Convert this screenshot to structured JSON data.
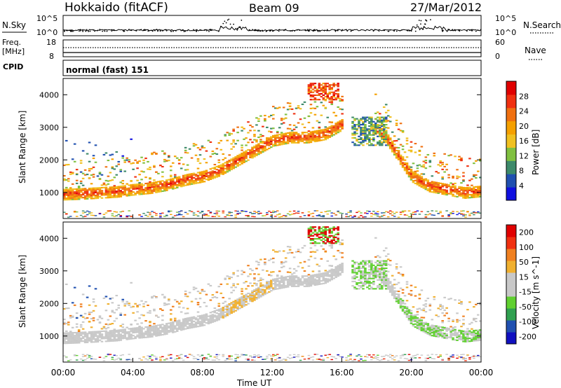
{
  "header": {
    "radar": "Hokkaido (fitACF)",
    "beam": "Beam 09",
    "date": "27/Mar/2012"
  },
  "nsky_panel": {
    "label": "N.Sky",
    "yticks_left": [
      "10^5",
      "10^0"
    ],
    "yticks_right": [
      "10^5",
      "10^0"
    ],
    "right_label": "N.Search"
  },
  "freq_panel": {
    "label_line1": "Freq.",
    "label_line2": "[MHz]",
    "yticks_left": [
      "18",
      "8"
    ],
    "yticks_right": [
      "60",
      "0"
    ],
    "right_label": "Nave"
  },
  "cpid_panel": {
    "label": "CPID",
    "value": "normal (fast) 151"
  },
  "colors": {
    "power_scale": [
      "#1010e0",
      "#2050b0",
      "#3d8a6a",
      "#80c040",
      "#f0c020",
      "#f5a000",
      "#f07010",
      "#f03010",
      "#e00000"
    ],
    "velocity_scale": [
      "#e00000",
      "#f03010",
      "#f08020",
      "#f0b030",
      "#c8c8c8",
      "#c8c8c8",
      "#60d030",
      "#30a050",
      "#2050b0",
      "#1010c0"
    ],
    "ground_scatter": "#c8c8c8"
  },
  "chart_data": [
    {
      "type": "heatmap",
      "name": "power",
      "ylabel": "Slant Range [km]",
      "yticks": [
        "1000",
        "2000",
        "3000",
        "4000"
      ],
      "ylim": [
        200,
        4500
      ],
      "xlim": [
        0,
        24
      ],
      "colorbar": {
        "label": "Power [dB]",
        "ticks": [
          "4",
          "8",
          "12",
          "16",
          "20",
          "24",
          "28"
        ],
        "range": [
          0,
          32
        ]
      },
      "features": [
        {
          "type": "band",
          "x": [
            0,
            1,
            2,
            3,
            4,
            5,
            6,
            7,
            8,
            9,
            10,
            11,
            12,
            13,
            14,
            15,
            16
          ],
          "y_center": [
            950,
            970,
            1000,
            1030,
            1100,
            1150,
            1250,
            1400,
            1500,
            1700,
            2000,
            2300,
            2600,
            2700,
            2700,
            2800,
            3100
          ],
          "thickness_km": 350,
          "power_db": 22
        },
        {
          "type": "band",
          "x": [
            17.8,
            18.5,
            19,
            19.5,
            20,
            21,
            22,
            23,
            24
          ],
          "y_center": [
            3000,
            2700,
            2300,
            1900,
            1500,
            1200,
            1100,
            1000,
            1050
          ],
          "thickness_km": 350,
          "power_db": 22
        },
        {
          "type": "patch",
          "x": [
            14,
            15.8
          ],
          "y_center": 4100,
          "thickness_km": 500,
          "power_db": 22
        },
        {
          "type": "patch",
          "x": [
            16.5,
            18.5
          ],
          "y_center": 2900,
          "thickness_km": 900,
          "power_db": 12
        }
      ]
    },
    {
      "type": "heatmap",
      "name": "velocity",
      "ylabel": "Slant Range [km]",
      "yticks": [
        "1000",
        "2000",
        "3000",
        "4000"
      ],
      "ylim": [
        200,
        4500
      ],
      "xlim": [
        0,
        24
      ],
      "xticks": [
        "00:00",
        "04:00",
        "08:00",
        "12:00",
        "16:00",
        "20:00",
        "00:00"
      ],
      "xlabel": "Time UT",
      "colorbar": {
        "label": "Velocity [m s^-1]",
        "ticks": [
          "200",
          "100",
          "50",
          "15",
          "-15",
          "-50",
          "-100",
          "-200"
        ],
        "range": [
          -250,
          250
        ]
      }
    }
  ]
}
